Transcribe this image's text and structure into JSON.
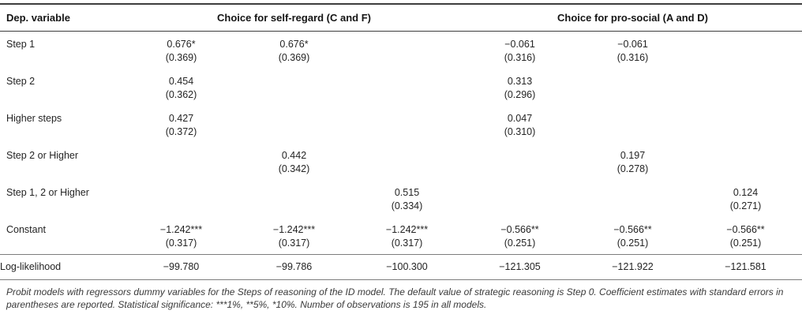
{
  "table": {
    "header": {
      "dep_variable": "Dep. variable",
      "group_self_regard": "Choice for self-regard (C and F)",
      "group_pro_social": "Choice for pro-social (A and D)"
    },
    "rows": [
      {
        "label": "Step 1",
        "coef": [
          "0.676*",
          "0.676*",
          "",
          "−0.061",
          "−0.061",
          ""
        ],
        "se": [
          "(0.369)",
          "(0.369)",
          "",
          "(0.316)",
          "(0.316)",
          ""
        ]
      },
      {
        "label": "Step 2",
        "coef": [
          "0.454",
          "",
          "",
          "0.313",
          "",
          ""
        ],
        "se": [
          "(0.362)",
          "",
          "",
          "(0.296)",
          "",
          ""
        ]
      },
      {
        "label": "Higher steps",
        "coef": [
          "0.427",
          "",
          "",
          "0.047",
          "",
          ""
        ],
        "se": [
          "(0.372)",
          "",
          "",
          "(0.310)",
          "",
          ""
        ]
      },
      {
        "label": "Step 2 or Higher",
        "coef": [
          "",
          "0.442",
          "",
          "",
          "0.197",
          ""
        ],
        "se": [
          "",
          "(0.342)",
          "",
          "",
          "(0.278)",
          ""
        ]
      },
      {
        "label": "Step 1, 2 or Higher",
        "coef": [
          "",
          "",
          "0.515",
          "",
          "",
          "0.124"
        ],
        "se": [
          "",
          "",
          "(0.334)",
          "",
          "",
          "(0.271)"
        ]
      },
      {
        "label": "Constant",
        "coef": [
          "−1.242***",
          "−1.242***",
          "−1.242***",
          "−0.566**",
          "−0.566**",
          "−0.566**"
        ],
        "se": [
          "(0.317)",
          "(0.317)",
          "(0.317)",
          "(0.251)",
          "(0.251)",
          "(0.251)"
        ]
      }
    ],
    "summary_row": {
      "label": "Log-likelihood",
      "values": [
        "−99.780",
        "−99.786",
        "−100.300",
        "−121.305",
        "−121.922",
        "−121.581"
      ]
    },
    "footnote": "Probit models with regressors dummy variables for the Steps of reasoning of the ID model. The default value of strategic reasoning is Step 0. Coefficient estimates with standard errors in parentheses are reported. Statistical significance: ***1%, **5%, *10%. Number of observations is 195 in all models."
  }
}
